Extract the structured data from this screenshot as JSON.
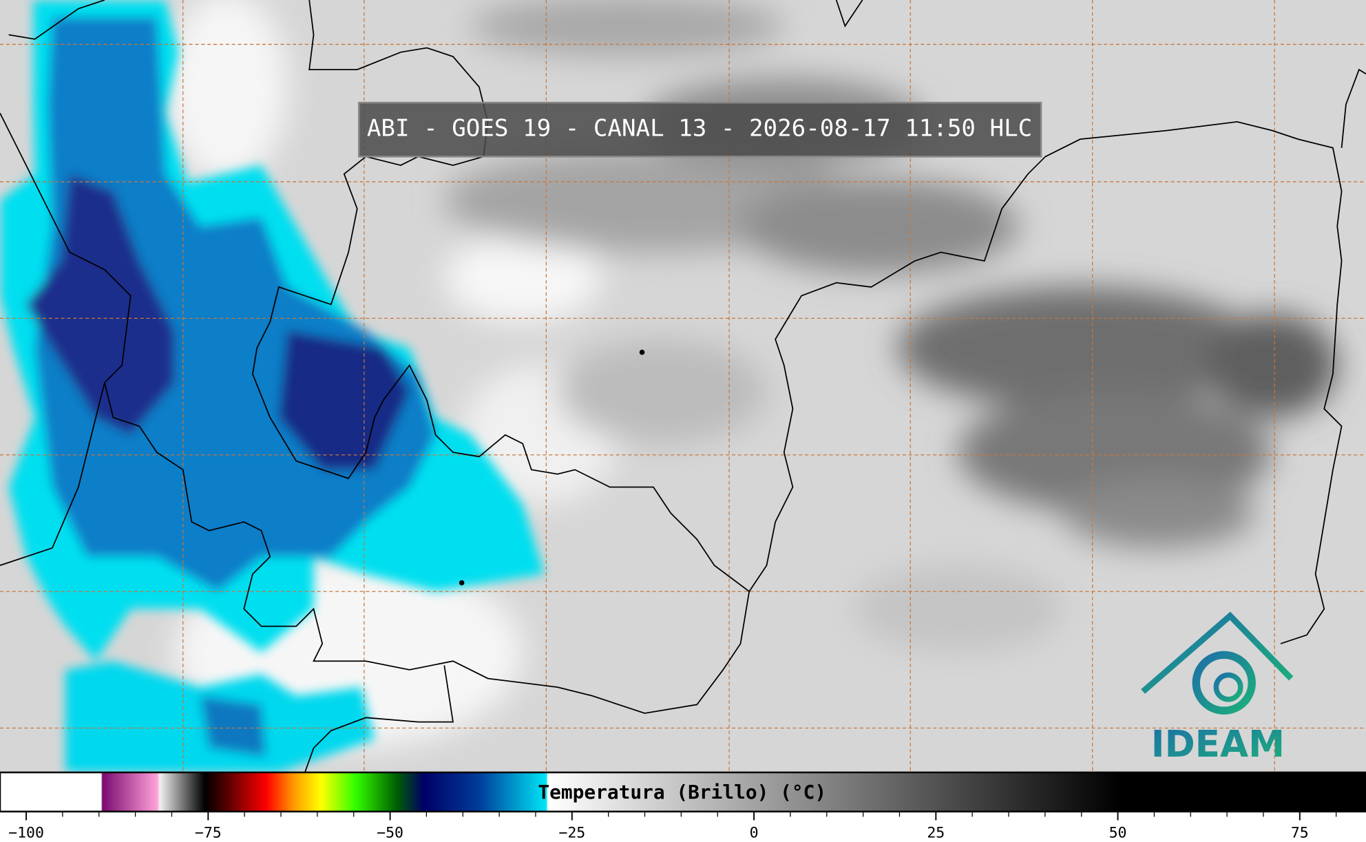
{
  "title": "ABI - GOES 19 - CANAL 13 - 2026-08-17 11:50 HLC",
  "colorbar": {
    "label": "Temperatura (Brillo) (°C)",
    "lim": [
      -103.6,
      84.1
    ],
    "ticks": [
      {
        "value": -100,
        "label": "−100"
      },
      {
        "value": -75,
        "label": "−75"
      },
      {
        "value": -50,
        "label": "−50"
      },
      {
        "value": -25,
        "label": "−25"
      },
      0,
      25,
      50,
      75
    ],
    "minor_ticks": [
      -95,
      -90,
      -85,
      -80,
      -70,
      -65,
      -60,
      -55,
      -45,
      -40,
      -35,
      -30,
      -20,
      -15,
      -10,
      -5,
      5,
      10,
      15,
      20,
      30,
      35,
      40,
      45,
      55,
      60,
      65,
      70,
      80
    ]
  },
  "logo": {
    "text": "IDEAM"
  }
}
